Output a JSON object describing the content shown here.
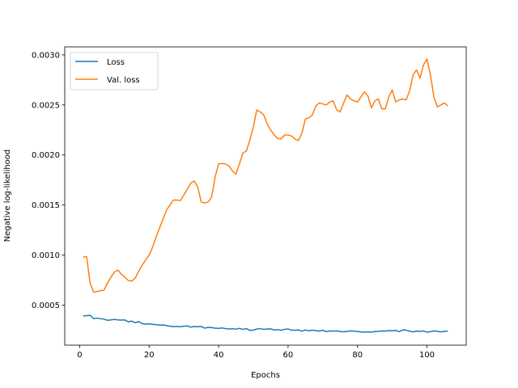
{
  "chart_data": {
    "type": "line",
    "xlabel": "Epochs",
    "ylabel": "Negative log-likelihood",
    "xlim": [
      -4.3,
      111.3
    ],
    "ylim": [
      0.0001,
      0.00308
    ],
    "xticks": [
      0,
      20,
      40,
      60,
      80,
      100
    ],
    "yticks": [
      0.0005,
      0.001,
      0.0015,
      0.002,
      0.0025,
      0.003
    ],
    "ytick_labels": [
      "0.0005",
      "0.0010",
      "0.0015",
      "0.0020",
      "0.0025",
      "0.0030"
    ],
    "grid": false,
    "legend_position": "top-left",
    "x": [
      1,
      2,
      3,
      4,
      5,
      6,
      7,
      8,
      9,
      10,
      11,
      12,
      13,
      14,
      15,
      16,
      17,
      18,
      19,
      20,
      21,
      22,
      23,
      24,
      25,
      26,
      27,
      28,
      29,
      30,
      31,
      32,
      33,
      34,
      35,
      36,
      37,
      38,
      39,
      40,
      41,
      42,
      43,
      44,
      45,
      46,
      47,
      48,
      49,
      50,
      51,
      52,
      53,
      54,
      55,
      56,
      57,
      58,
      59,
      60,
      61,
      62,
      63,
      64,
      65,
      66,
      67,
      68,
      69,
      70,
      71,
      72,
      73,
      74,
      75,
      76,
      77,
      78,
      79,
      80,
      81,
      82,
      83,
      84,
      85,
      86,
      87,
      88,
      89,
      90,
      91,
      92,
      93,
      94,
      95,
      96,
      97,
      98,
      99,
      100,
      101,
      102,
      103,
      104,
      105,
      106
    ],
    "series": [
      {
        "name": "Loss",
        "color": "#1f77b4",
        "values": [
          0.000392,
          0.000395,
          0.000398,
          0.000365,
          0.00037,
          0.000365,
          0.00036,
          0.000348,
          0.000352,
          0.000357,
          0.000352,
          0.00035,
          0.000352,
          0.000333,
          0.00034,
          0.000325,
          0.000335,
          0.000315,
          0.00031,
          0.000313,
          0.000308,
          0.000305,
          0.0003,
          0.000302,
          0.000296,
          0.00029,
          0.000285,
          0.000288,
          0.000285,
          0.00029,
          0.000292,
          0.00028,
          0.000287,
          0.000285,
          0.000287,
          0.00027,
          0.000278,
          0.000276,
          0.00027,
          0.000268,
          0.000272,
          0.000265,
          0.000262,
          0.000264,
          0.00026,
          0.000268,
          0.000258,
          0.000265,
          0.000248,
          0.00025,
          0.000262,
          0.000265,
          0.000258,
          0.000262,
          0.000263,
          0.000252,
          0.000255,
          0.00025,
          0.000258,
          0.000262,
          0.00025,
          0.000248,
          0.000252,
          0.00024,
          0.000252,
          0.000243,
          0.00025,
          0.000245,
          0.00024,
          0.00025,
          0.000235,
          0.000242,
          0.00024,
          0.000243,
          0.000236,
          0.000233,
          0.000238,
          0.000242,
          0.00024,
          0.000236,
          0.000232,
          0.00023,
          0.000232,
          0.00023,
          0.000236,
          0.000238,
          0.000242,
          0.00024,
          0.000245,
          0.000243,
          0.000248,
          0.000235,
          0.000252,
          0.00025,
          0.00024,
          0.000232,
          0.00024,
          0.000238,
          0.000242,
          0.00023,
          0.000235,
          0.000242,
          0.000238,
          0.000232,
          0.000238,
          0.00024
        ]
      },
      {
        "name": "Val. loss",
        "color": "#ff7f0e",
        "values": [
          0.00098,
          0.000985,
          0.00072,
          0.00063,
          0.000635,
          0.000645,
          0.00065,
          0.00072,
          0.00078,
          0.00083,
          0.00085,
          0.00081,
          0.00078,
          0.000745,
          0.00074,
          0.00077,
          0.00084,
          0.0009,
          0.00095,
          0.001,
          0.00108,
          0.00118,
          0.00127,
          0.00136,
          0.00145,
          0.0015,
          0.00155,
          0.00155,
          0.001545,
          0.0016,
          0.00166,
          0.00172,
          0.00174,
          0.00168,
          0.00153,
          0.00152,
          0.00153,
          0.00158,
          0.00178,
          0.00191,
          0.001915,
          0.00191,
          0.00189,
          0.00184,
          0.00181,
          0.00191,
          0.00202,
          0.00204,
          0.00215,
          0.00228,
          0.00245,
          0.00243,
          0.0024,
          0.00231,
          0.00225,
          0.0022,
          0.002165,
          0.00216,
          0.0022,
          0.0022,
          0.00219,
          0.00216,
          0.002145,
          0.00222,
          0.00236,
          0.00237,
          0.0024,
          0.00249,
          0.00252,
          0.00251,
          0.0025,
          0.00253,
          0.00254,
          0.00245,
          0.00243,
          0.00252,
          0.0026,
          0.00256,
          0.00254,
          0.00253,
          0.00258,
          0.00263,
          0.00259,
          0.00247,
          0.00254,
          0.00256,
          0.00246,
          0.00246,
          0.00258,
          0.00265,
          0.00253,
          0.00255,
          0.00256,
          0.00255,
          0.00264,
          0.0028,
          0.00285,
          0.00277,
          0.0029,
          0.00296,
          0.0028,
          0.00258,
          0.00248,
          0.0025,
          0.00252,
          0.00249
        ]
      }
    ]
  }
}
